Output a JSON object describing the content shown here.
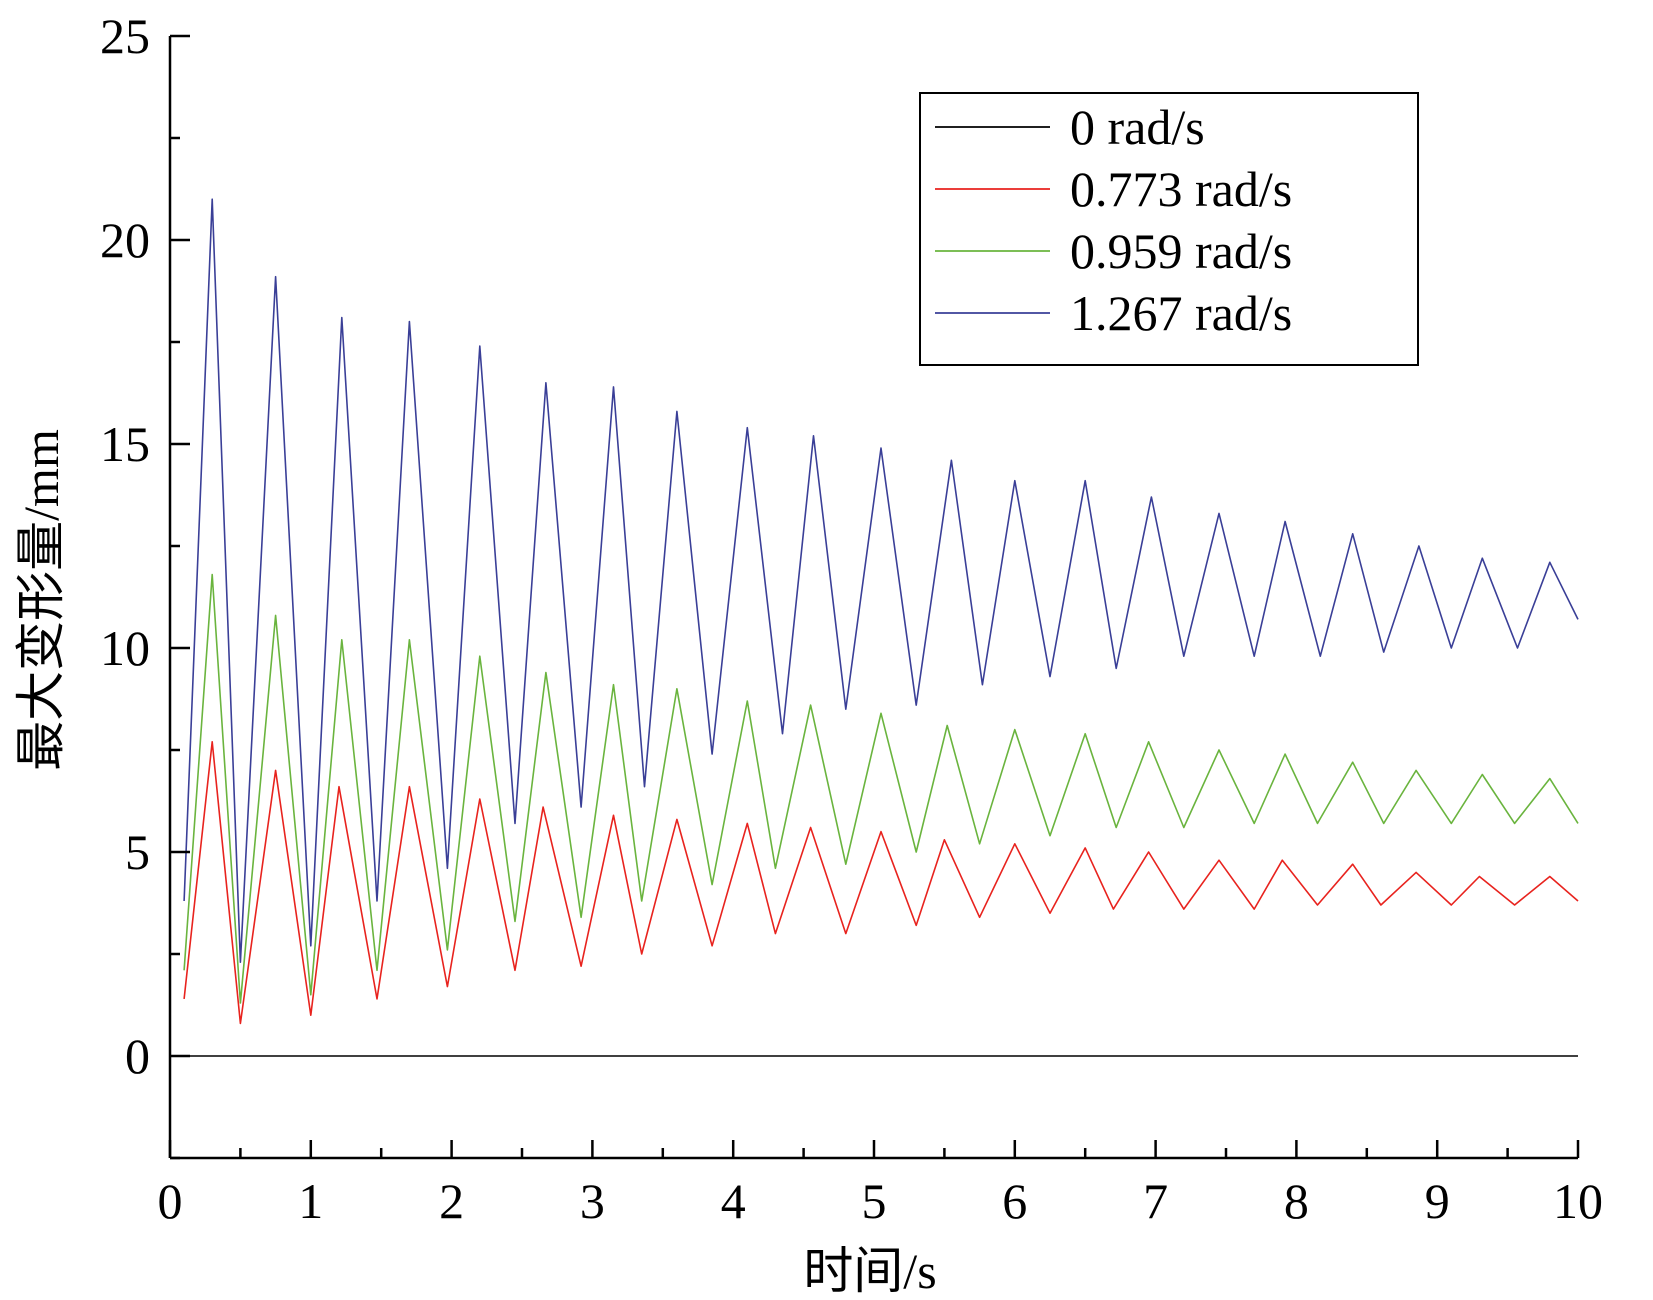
{
  "chart_data": {
    "type": "line",
    "title": "",
    "xlabel": "时间/s",
    "ylabel": "最大变形量/mm",
    "xlim": [
      0,
      10
    ],
    "ylim": [
      -2.5,
      25
    ],
    "x_ticks": [
      0,
      1,
      2,
      3,
      4,
      5,
      6,
      7,
      8,
      9,
      10
    ],
    "y_ticks": [
      0,
      5,
      10,
      15,
      20,
      25
    ],
    "grid": false,
    "legend_position": "top-right",
    "series": [
      {
        "name": "0 rad/s",
        "color": "#000000",
        "x": [
          0.1,
          10
        ],
        "y": [
          0,
          0
        ]
      },
      {
        "name": "0.773 rad/s",
        "color": "#e8231e",
        "x": [
          0.1,
          0.3,
          0.5,
          0.75,
          1.0,
          1.2,
          1.47,
          1.7,
          1.97,
          2.2,
          2.45,
          2.65,
          2.92,
          3.15,
          3.35,
          3.6,
          3.85,
          4.1,
          4.3,
          4.55,
          4.8,
          5.05,
          5.3,
          5.5,
          5.75,
          6.0,
          6.25,
          6.5,
          6.7,
          6.95,
          7.2,
          7.45,
          7.7,
          7.9,
          8.15,
          8.4,
          8.6,
          8.85,
          9.1,
          9.3,
          9.55,
          9.8,
          10.0
        ],
        "y": [
          1.4,
          7.7,
          0.8,
          7.0,
          1.0,
          6.6,
          1.4,
          6.6,
          1.7,
          6.3,
          2.1,
          6.1,
          2.2,
          5.9,
          2.5,
          5.8,
          2.7,
          5.7,
          3.0,
          5.6,
          3.0,
          5.5,
          3.2,
          5.3,
          3.4,
          5.2,
          3.5,
          5.1,
          3.6,
          5.0,
          3.6,
          4.8,
          3.6,
          4.8,
          3.7,
          4.7,
          3.7,
          4.5,
          3.7,
          4.4,
          3.7,
          4.4,
          3.8
        ]
      },
      {
        "name": "0.959 rad/s",
        "color": "#6ab43e",
        "x": [
          0.1,
          0.3,
          0.5,
          0.75,
          1.0,
          1.22,
          1.47,
          1.7,
          1.97,
          2.2,
          2.45,
          2.67,
          2.92,
          3.15,
          3.35,
          3.6,
          3.85,
          4.1,
          4.3,
          4.55,
          4.8,
          5.05,
          5.3,
          5.52,
          5.75,
          6.0,
          6.25,
          6.5,
          6.72,
          6.95,
          7.2,
          7.45,
          7.7,
          7.92,
          8.15,
          8.4,
          8.62,
          8.85,
          9.1,
          9.32,
          9.55,
          9.8,
          10.0
        ],
        "y": [
          2.1,
          11.8,
          1.3,
          10.8,
          1.5,
          10.2,
          2.1,
          10.2,
          2.6,
          9.8,
          3.3,
          9.4,
          3.4,
          9.1,
          3.8,
          9.0,
          4.2,
          8.7,
          4.6,
          8.6,
          4.7,
          8.4,
          5.0,
          8.1,
          5.2,
          8.0,
          5.4,
          7.9,
          5.6,
          7.7,
          5.6,
          7.5,
          5.7,
          7.4,
          5.7,
          7.2,
          5.7,
          7.0,
          5.7,
          6.9,
          5.7,
          6.8,
          5.7
        ]
      },
      {
        "name": "1.267 rad/s",
        "color": "#3a3f97",
        "x": [
          0.1,
          0.3,
          0.5,
          0.75,
          1.0,
          1.22,
          1.47,
          1.7,
          1.97,
          2.2,
          2.45,
          2.67,
          2.92,
          3.15,
          3.37,
          3.6,
          3.85,
          4.1,
          4.35,
          4.57,
          4.8,
          5.05,
          5.3,
          5.55,
          5.77,
          6.0,
          6.25,
          6.5,
          6.72,
          6.97,
          7.2,
          7.45,
          7.7,
          7.92,
          8.17,
          8.4,
          8.62,
          8.87,
          9.1,
          9.32,
          9.57,
          9.8,
          10.0
        ],
        "y": [
          3.8,
          21.0,
          2.3,
          19.1,
          2.7,
          18.1,
          3.8,
          18.0,
          4.6,
          17.4,
          5.7,
          16.5,
          6.1,
          16.4,
          6.6,
          15.8,
          7.4,
          15.4,
          7.9,
          15.2,
          8.5,
          14.9,
          8.6,
          14.6,
          9.1,
          14.1,
          9.3,
          14.1,
          9.5,
          13.7,
          9.8,
          13.3,
          9.8,
          13.1,
          9.8,
          12.8,
          9.9,
          12.5,
          10.0,
          12.2,
          10.0,
          12.1,
          10.7
        ]
      }
    ]
  }
}
